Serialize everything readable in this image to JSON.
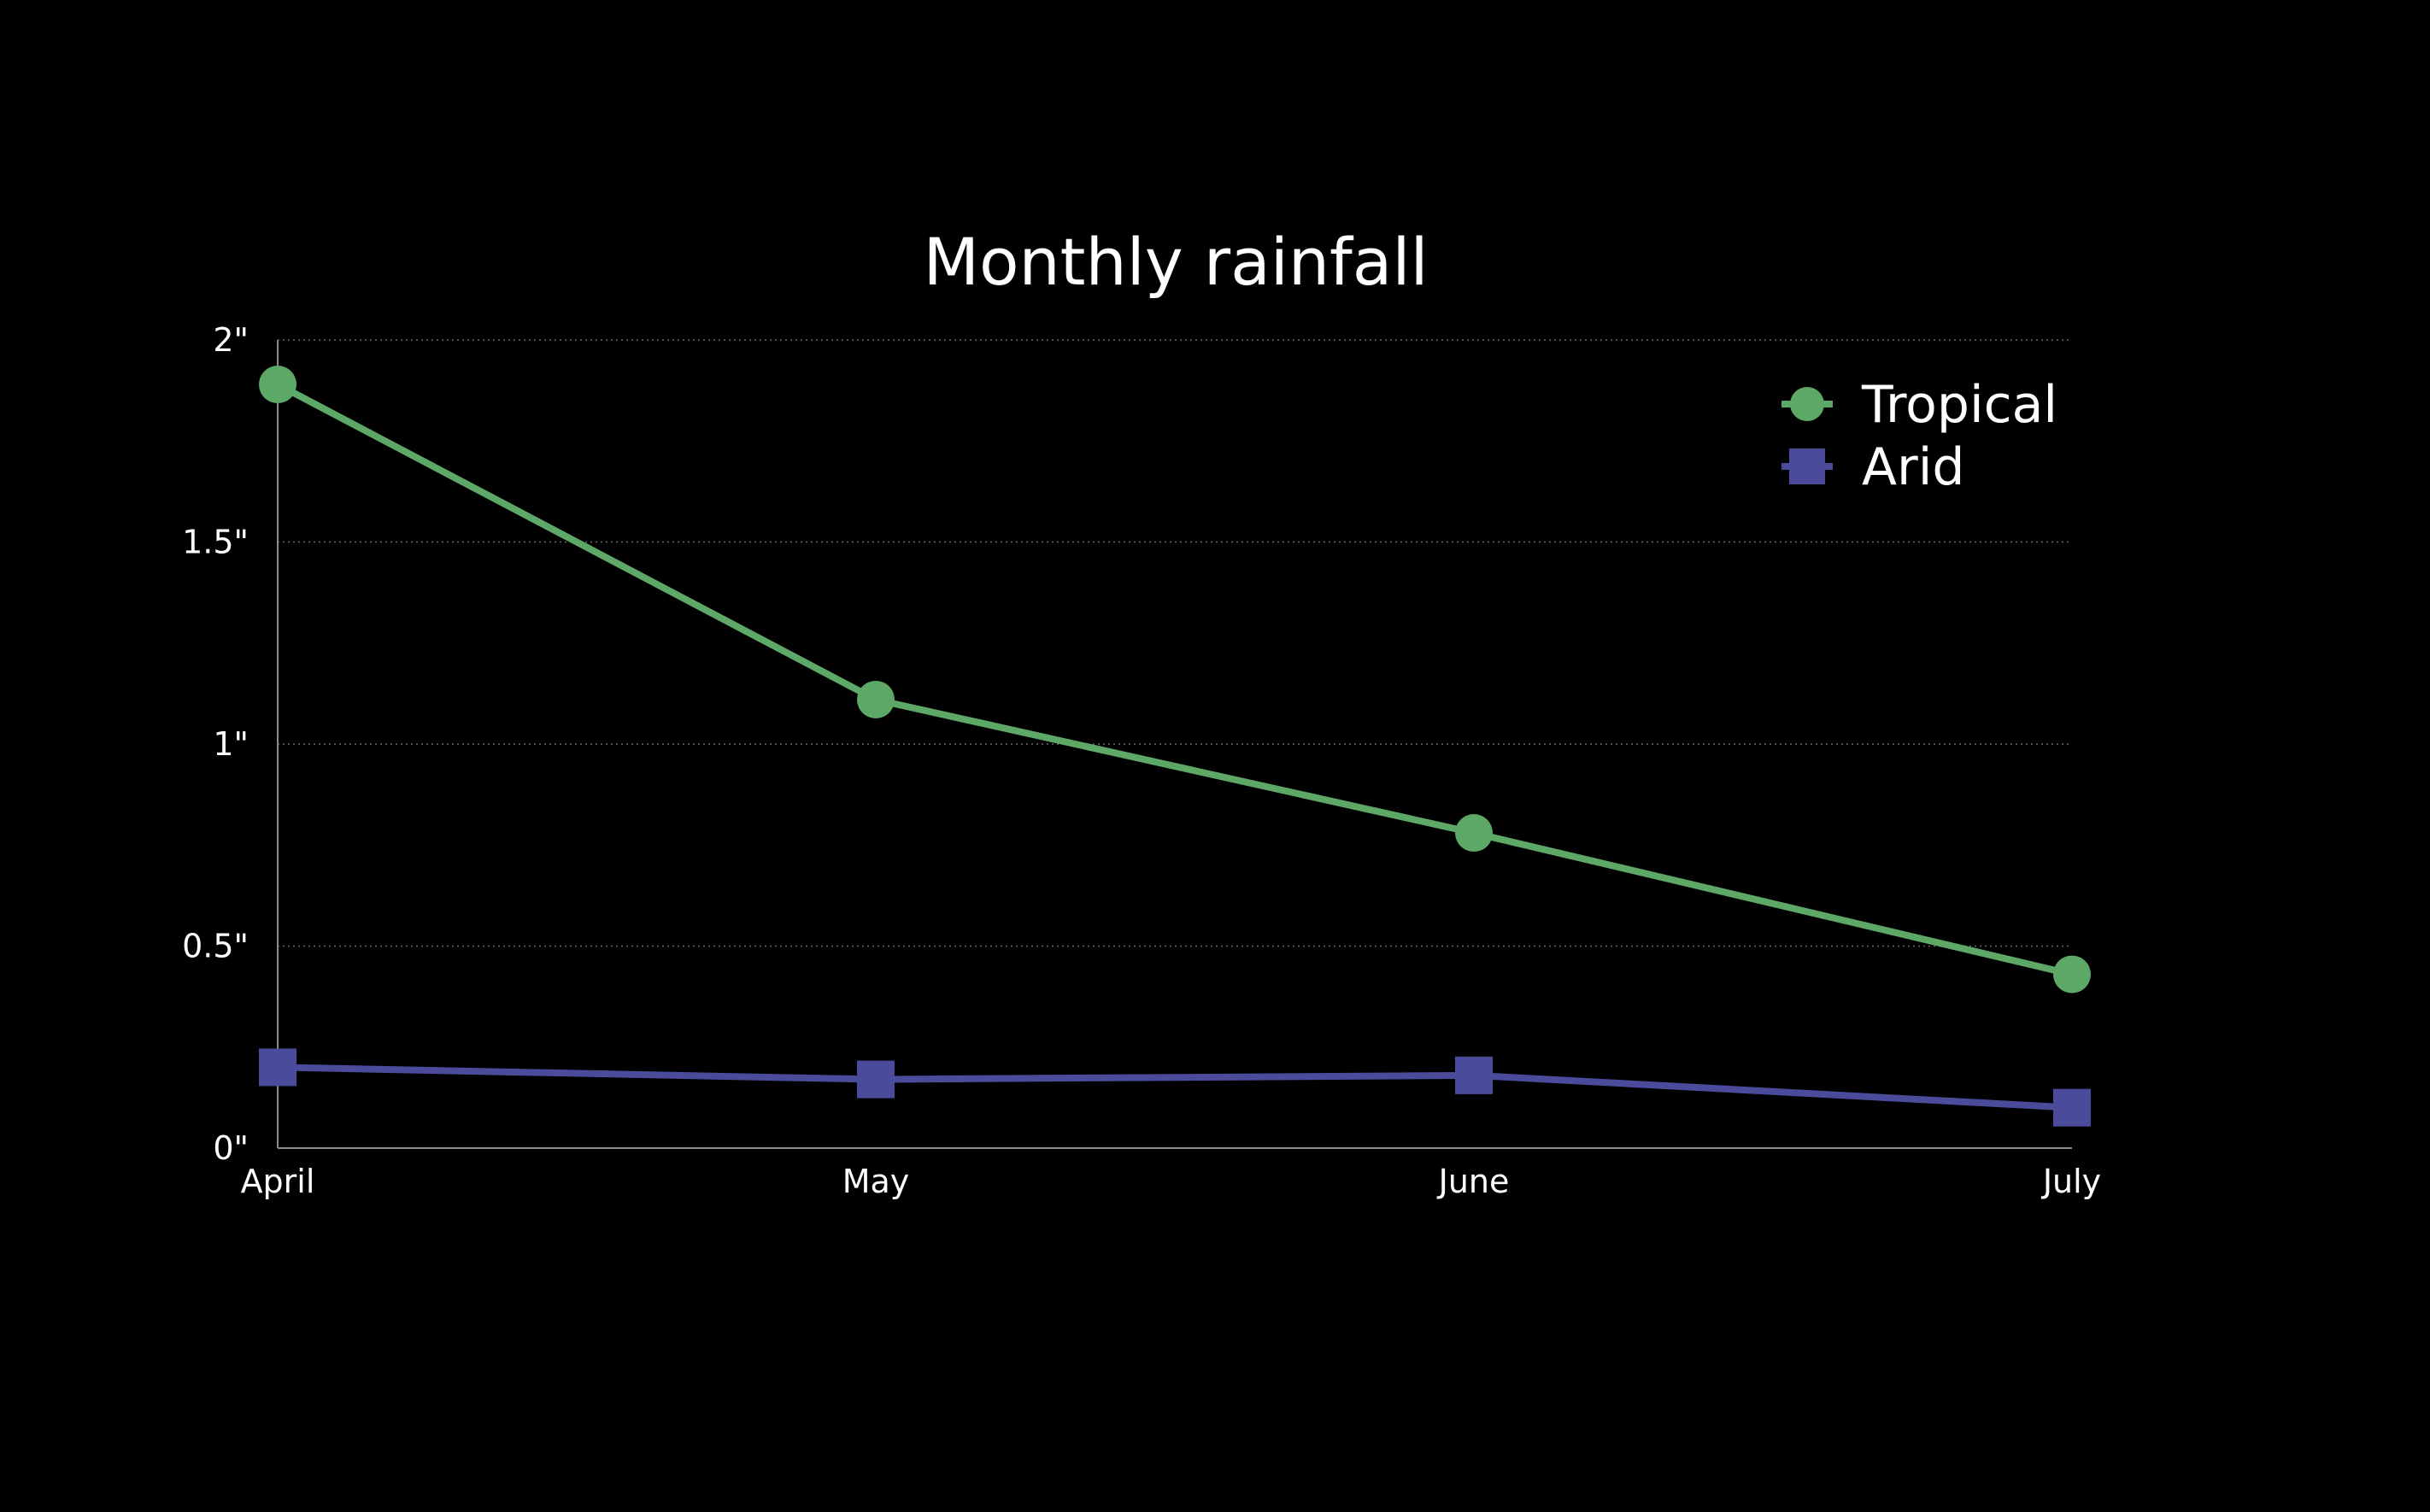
{
  "chart_data": {
    "type": "line",
    "title": "Monthly rainfall",
    "xlabel": "",
    "ylabel": "",
    "categories": [
      "April",
      "May",
      "June",
      "July"
    ],
    "ylim": [
      0,
      2
    ],
    "y_ticks": [
      0,
      0.5,
      1,
      1.5,
      2
    ],
    "y_tick_labels": [
      "0\"",
      "0.5\"",
      "1\"",
      "1.5\"",
      "2\""
    ],
    "grid": true,
    "legend_position": "top-right",
    "series": [
      {
        "name": "Tropical",
        "values": [
          1.89,
          1.11,
          0.78,
          0.43
        ],
        "color": "#5ea867",
        "marker": "circle"
      },
      {
        "name": "Arid",
        "values": [
          0.2,
          0.17,
          0.18,
          0.1
        ],
        "color": "#4b4b9c",
        "marker": "square"
      }
    ]
  }
}
